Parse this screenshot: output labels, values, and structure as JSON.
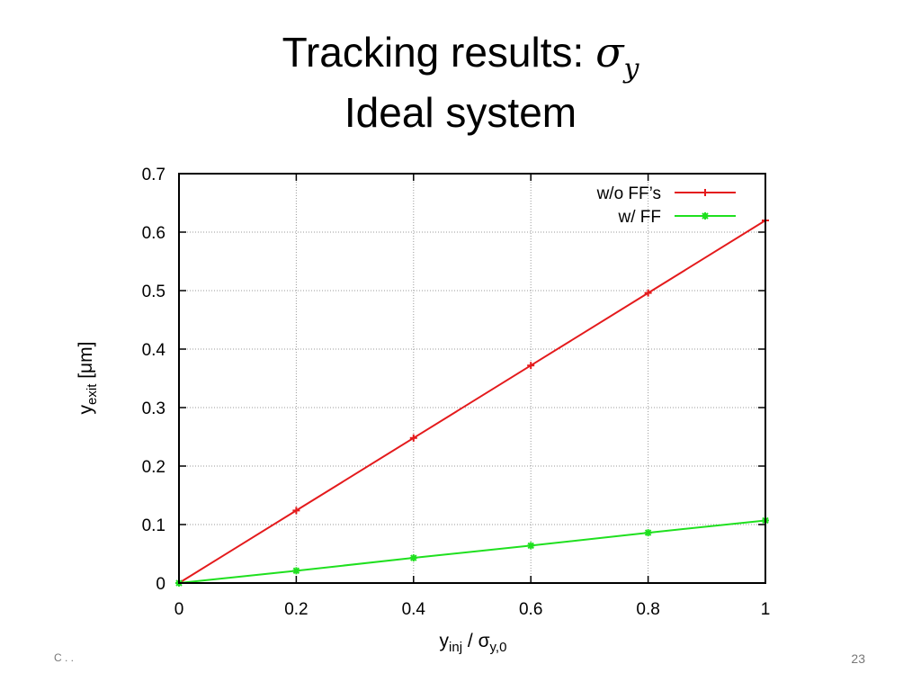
{
  "slide": {
    "title_line1_text": "Tracking results: ",
    "title_symbol": "σ",
    "title_symbol_sub": "y",
    "title_line2": "Ideal system",
    "footer_left": "C . .",
    "page_number": "23"
  },
  "chart_data": {
    "type": "line",
    "xlabel": {
      "main": "y",
      "main_sub": "inj",
      "sep": " / ",
      "sym": "σ",
      "sym_sub": "y,0"
    },
    "ylabel": {
      "main": "y",
      "main_sub": "exit",
      "unit": " [μm]"
    },
    "xlim": [
      0,
      1
    ],
    "ylim": [
      0,
      0.7
    ],
    "xticks": [
      "0",
      "0.2",
      "0.4",
      "0.6",
      "0.8",
      "1"
    ],
    "xtick_values": [
      0,
      0.2,
      0.4,
      0.6,
      0.8,
      1
    ],
    "yticks": [
      "0",
      "0.1",
      "0.2",
      "0.3",
      "0.4",
      "0.5",
      "0.6",
      "0.7"
    ],
    "ytick_values": [
      0,
      0.1,
      0.2,
      0.3,
      0.4,
      0.5,
      0.6,
      0.7
    ],
    "grid": true,
    "legend_position": "top-right",
    "x": [
      0,
      0.2,
      0.4,
      0.6,
      0.8,
      1
    ],
    "series": [
      {
        "name": "w/o FF’s",
        "values": [
          0,
          0.124,
          0.248,
          0.372,
          0.496,
          0.62
        ],
        "color": "#e41a1c",
        "marker": "plus"
      },
      {
        "name": "w/ FF",
        "values": [
          0,
          0.021,
          0.043,
          0.064,
          0.086,
          0.107
        ],
        "color": "#1fe01f",
        "marker": "star"
      }
    ]
  }
}
